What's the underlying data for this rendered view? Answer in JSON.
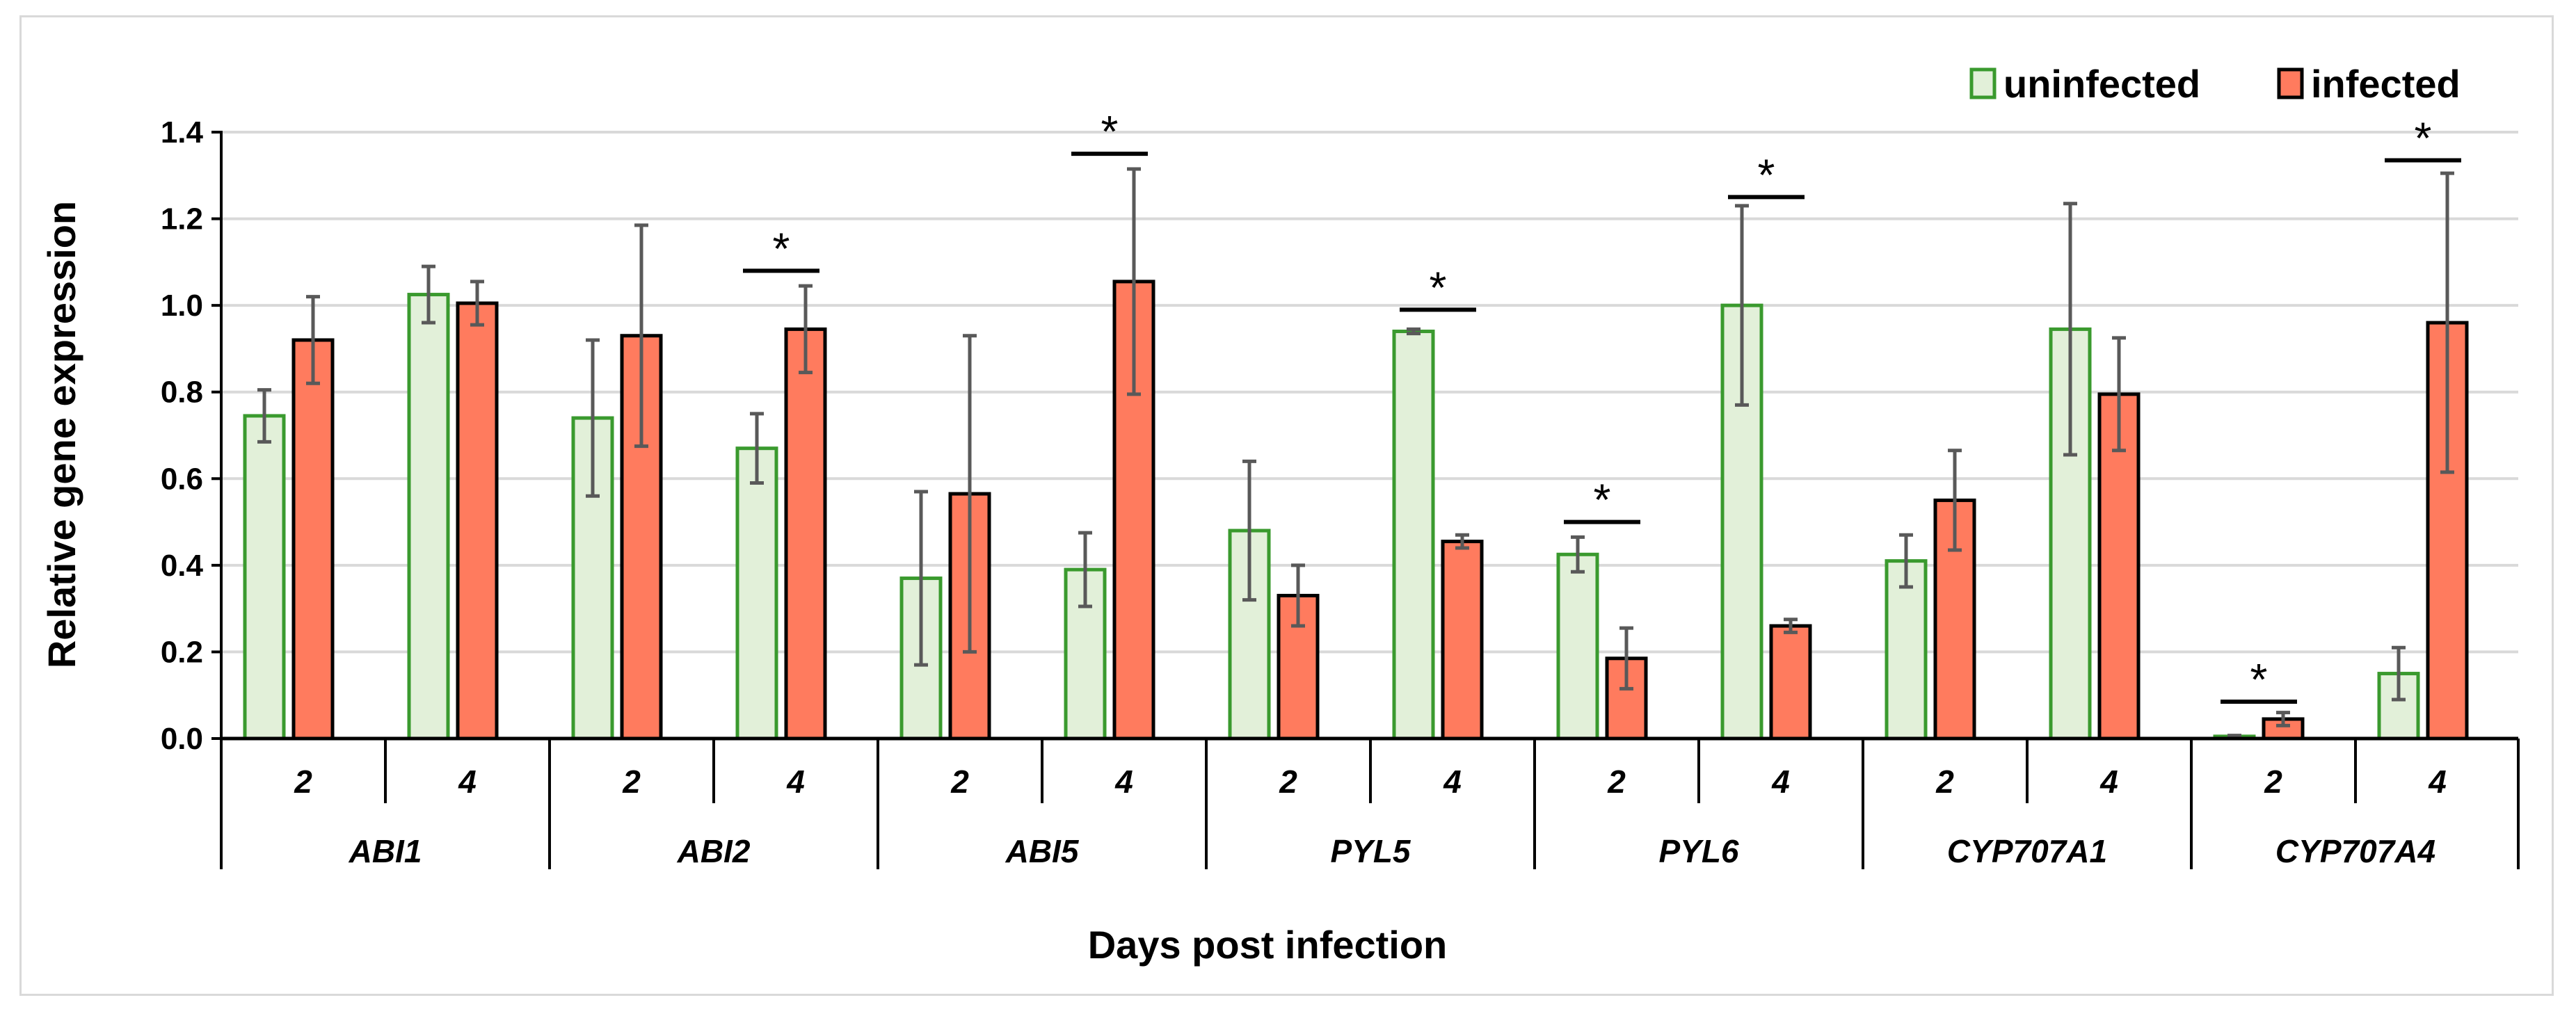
{
  "chart_data": {
    "type": "bar",
    "xlabel": "Days post infection",
    "ylabel": "Relative gene expression",
    "ylim": [
      0,
      1.4
    ],
    "yticks": [
      "0.0",
      "0.2",
      "0.4",
      "0.6",
      "0.8",
      "1.0",
      "1.2",
      "1.4"
    ],
    "grid": true,
    "legend_position": "top-right",
    "groups": [
      {
        "gene": "ABI1",
        "days": [
          "2",
          "4"
        ]
      },
      {
        "gene": "ABI2",
        "days": [
          "2",
          "4"
        ]
      },
      {
        "gene": "ABI5",
        "days": [
          "2",
          "4"
        ]
      },
      {
        "gene": "PYL5",
        "days": [
          "2",
          "4"
        ]
      },
      {
        "gene": "PYL6",
        "days": [
          "2",
          "4"
        ]
      },
      {
        "gene": "CYP707A1",
        "days": [
          "2",
          "4"
        ]
      },
      {
        "gene": "CYP707A4",
        "days": [
          "2",
          "4"
        ]
      }
    ],
    "series": [
      {
        "name": "uninfected",
        "fill": "#e2f0d9",
        "stroke": "#3a9a2e",
        "values": [
          0.745,
          1.025,
          0.74,
          0.67,
          0.37,
          0.39,
          0.48,
          0.94,
          0.425,
          1.0,
          0.41,
          0.945,
          0.005,
          0.15
        ],
        "errors": [
          0.06,
          0.065,
          0.18,
          0.08,
          0.2,
          0.085,
          0.16,
          0.005,
          0.04,
          0.23,
          0.06,
          0.29,
          0.002,
          0.06
        ]
      },
      {
        "name": "infected",
        "fill": "#ff7b5e",
        "stroke": "#000000",
        "values": [
          0.92,
          1.005,
          0.93,
          0.945,
          0.565,
          1.055,
          0.33,
          0.455,
          0.185,
          0.26,
          0.55,
          0.795,
          0.045,
          0.96
        ],
        "errors": [
          0.1,
          0.05,
          0.255,
          0.1,
          0.365,
          0.26,
          0.07,
          0.015,
          0.07,
          0.015,
          0.115,
          0.13,
          0.015,
          0.345
        ]
      }
    ],
    "error_bar_color": "#595959",
    "significance": [
      {
        "label": "*",
        "index": 3,
        "level": 1.08
      },
      {
        "label": "*",
        "index": 5,
        "level": 1.35
      },
      {
        "label": "*",
        "index": 7,
        "level": 0.99
      },
      {
        "label": "*",
        "index": 8,
        "level": 0.5
      },
      {
        "label": "*",
        "index": 9,
        "level": 1.25
      },
      {
        "label": "*",
        "index": 12,
        "level": 0.085
      },
      {
        "label": "*",
        "index": 13,
        "level": 1.335
      }
    ]
  }
}
